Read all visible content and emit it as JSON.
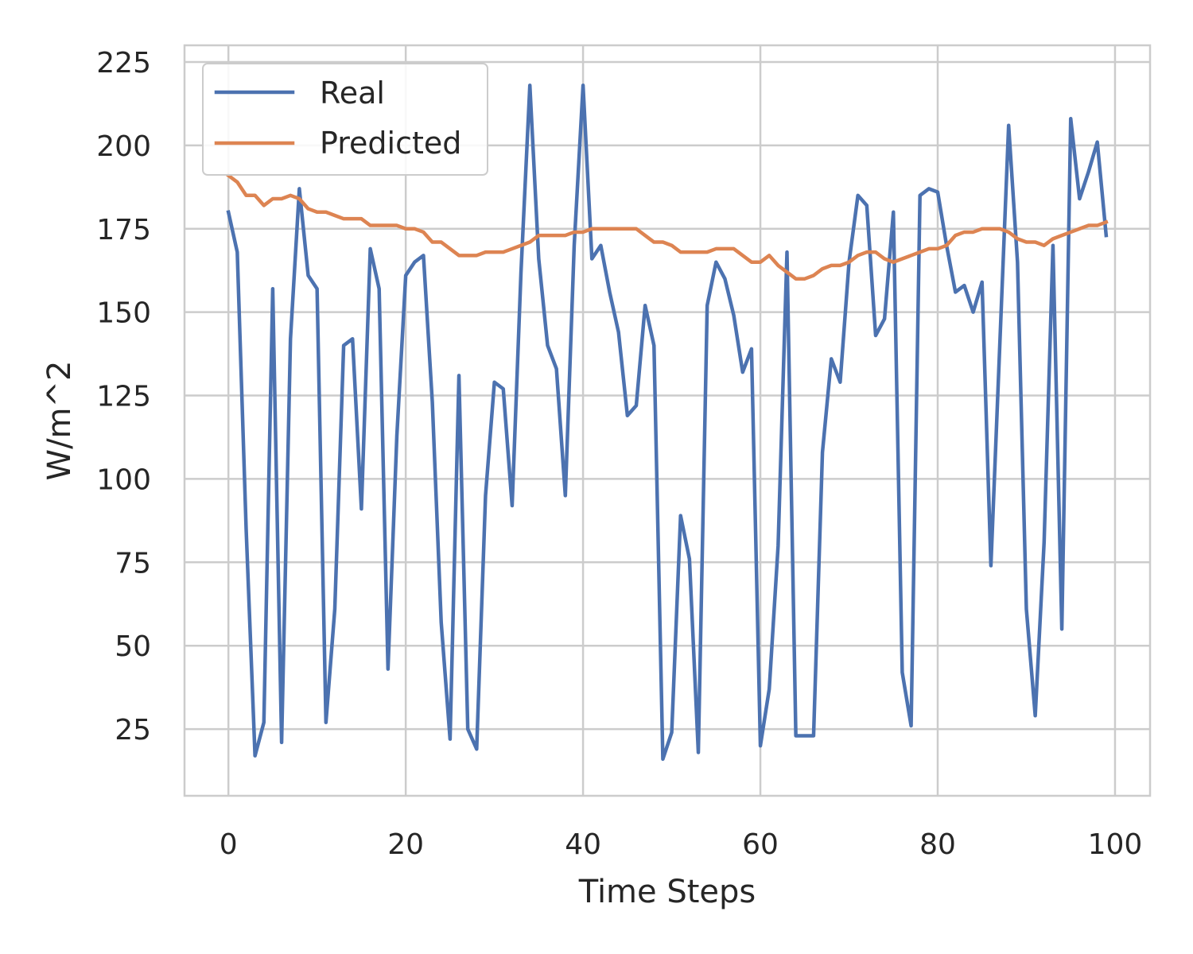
{
  "chart_data": {
    "type": "line",
    "title": "",
    "xlabel": "Time Steps",
    "ylabel": "W/m^2",
    "xlim": [
      -4.95,
      103.95
    ],
    "ylim": [
      5,
      230
    ],
    "xticks": [
      0,
      20,
      40,
      60,
      80,
      100
    ],
    "yticks": [
      25,
      50,
      75,
      100,
      125,
      150,
      175,
      200,
      225
    ],
    "grid": true,
    "legend_position": "top-left",
    "series": [
      {
        "name": "Real",
        "color": "#4c72b0",
        "values": [
          180,
          168,
          85,
          17,
          27,
          157,
          21,
          142,
          187,
          161,
          157,
          27,
          61,
          140,
          142,
          91,
          169,
          157,
          43,
          113,
          161,
          165,
          167,
          123,
          57,
          22,
          131,
          25,
          19,
          95,
          129,
          127,
          92,
          162,
          218,
          166,
          140,
          133,
          95,
          170,
          218,
          166,
          170,
          156,
          144,
          119,
          122,
          152,
          140,
          16,
          24,
          89,
          76,
          18,
          152,
          165,
          160,
          149,
          132,
          139,
          20,
          37,
          80,
          168,
          23,
          23,
          23,
          108,
          136,
          129,
          165,
          185,
          182,
          143,
          148,
          180,
          42,
          26,
          185,
          187,
          186,
          170,
          156,
          158,
          150,
          159,
          74,
          140,
          206,
          165,
          61,
          29,
          81,
          170,
          55,
          208,
          184,
          192,
          201,
          173
        ]
      },
      {
        "name": "Predicted",
        "color": "#dd8452",
        "values": [
          191,
          189,
          185,
          185,
          182,
          184,
          184,
          185,
          184,
          181,
          180,
          180,
          179,
          178,
          178,
          178,
          176,
          176,
          176,
          176,
          175,
          175,
          174,
          171,
          171,
          169,
          167,
          167,
          167,
          168,
          168,
          168,
          169,
          170,
          171,
          173,
          173,
          173,
          173,
          174,
          174,
          175,
          175,
          175,
          175,
          175,
          175,
          173,
          171,
          171,
          170,
          168,
          168,
          168,
          168,
          169,
          169,
          169,
          167,
          165,
          165,
          167,
          164,
          162,
          160,
          160,
          161,
          163,
          164,
          164,
          165,
          167,
          168,
          168,
          166,
          165,
          166,
          167,
          168,
          169,
          169,
          170,
          173,
          174,
          174,
          175,
          175,
          175,
          174,
          172,
          171,
          171,
          170,
          172,
          173,
          174,
          175,
          176,
          176,
          177
        ]
      }
    ]
  }
}
